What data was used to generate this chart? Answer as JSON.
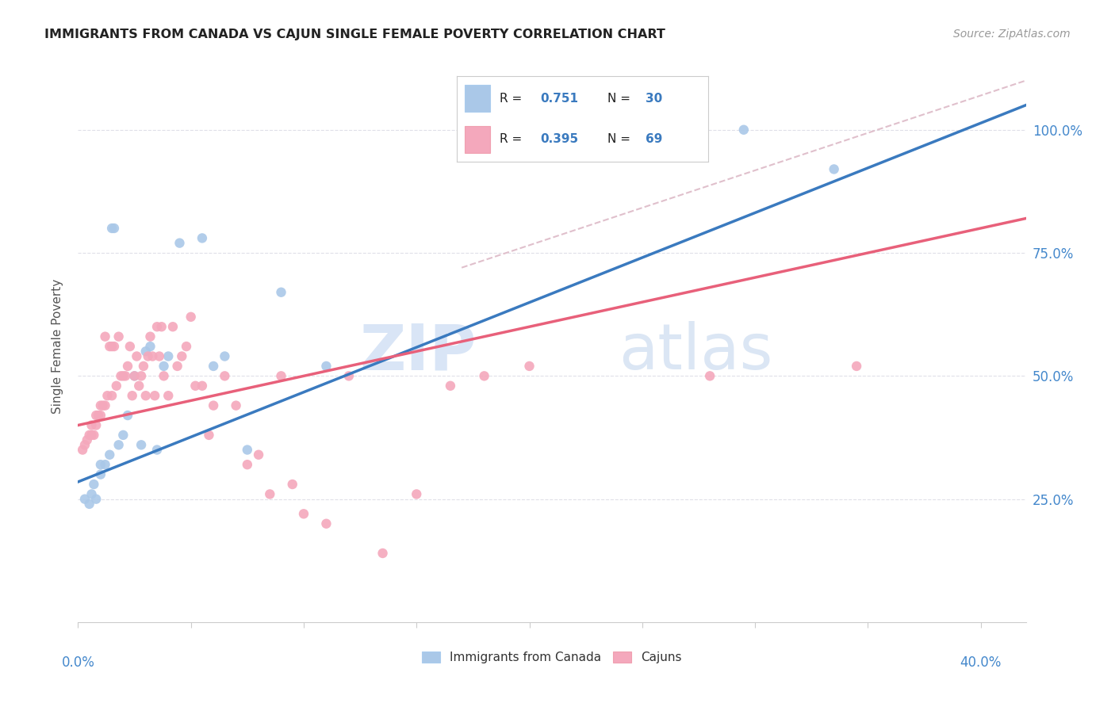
{
  "title": "IMMIGRANTS FROM CANADA VS CAJUN SINGLE FEMALE POVERTY CORRELATION CHART",
  "source": "Source: ZipAtlas.com",
  "ylabel": "Single Female Poverty",
  "r_canada": 0.751,
  "n_canada": 30,
  "r_cajun": 0.395,
  "n_cajun": 69,
  "xlim": [
    0.0,
    0.42
  ],
  "ylim": [
    0.0,
    1.12
  ],
  "canada_color": "#aac8e8",
  "cajun_color": "#f4a8bc",
  "canada_line_color": "#3a7abf",
  "cajun_line_color": "#e8607a",
  "diagonal_color": "#e0c0cc",
  "background_color": "#ffffff",
  "watermark_zip": "ZIP",
  "watermark_atlas": "atlas",
  "canada_line_x0": 0.0,
  "canada_line_y0": 0.285,
  "canada_line_x1": 0.42,
  "canada_line_y1": 1.05,
  "cajun_line_x0": 0.0,
  "cajun_line_y0": 0.4,
  "cajun_line_x1": 0.42,
  "cajun_line_y1": 0.82,
  "diag_line_x0": 0.17,
  "diag_line_y0": 0.72,
  "diag_line_x1": 0.42,
  "diag_line_y1": 1.1,
  "canada_x": [
    0.003,
    0.005,
    0.006,
    0.007,
    0.008,
    0.01,
    0.01,
    0.012,
    0.014,
    0.015,
    0.016,
    0.018,
    0.02,
    0.022,
    0.025,
    0.028,
    0.03,
    0.032,
    0.035,
    0.038,
    0.04,
    0.045,
    0.055,
    0.06,
    0.065,
    0.075,
    0.09,
    0.11,
    0.295,
    0.335
  ],
  "canada_y": [
    0.25,
    0.24,
    0.26,
    0.28,
    0.25,
    0.3,
    0.32,
    0.32,
    0.34,
    0.8,
    0.8,
    0.36,
    0.38,
    0.42,
    0.5,
    0.36,
    0.55,
    0.56,
    0.35,
    0.52,
    0.54,
    0.77,
    0.78,
    0.52,
    0.54,
    0.35,
    0.67,
    0.52,
    1.0,
    0.92
  ],
  "cajun_x": [
    0.002,
    0.003,
    0.004,
    0.005,
    0.006,
    0.006,
    0.007,
    0.008,
    0.008,
    0.009,
    0.01,
    0.01,
    0.011,
    0.012,
    0.012,
    0.013,
    0.014,
    0.015,
    0.015,
    0.016,
    0.017,
    0.018,
    0.019,
    0.02,
    0.021,
    0.022,
    0.023,
    0.024,
    0.025,
    0.026,
    0.027,
    0.028,
    0.029,
    0.03,
    0.031,
    0.032,
    0.033,
    0.034,
    0.035,
    0.036,
    0.037,
    0.038,
    0.04,
    0.042,
    0.044,
    0.046,
    0.048,
    0.05,
    0.052,
    0.055,
    0.058,
    0.06,
    0.065,
    0.07,
    0.075,
    0.08,
    0.085,
    0.09,
    0.095,
    0.1,
    0.11,
    0.12,
    0.135,
    0.15,
    0.165,
    0.18,
    0.2,
    0.28,
    0.345
  ],
  "cajun_y": [
    0.35,
    0.36,
    0.37,
    0.38,
    0.38,
    0.4,
    0.38,
    0.4,
    0.42,
    0.42,
    0.42,
    0.44,
    0.44,
    0.44,
    0.58,
    0.46,
    0.56,
    0.46,
    0.56,
    0.56,
    0.48,
    0.58,
    0.5,
    0.5,
    0.5,
    0.52,
    0.56,
    0.46,
    0.5,
    0.54,
    0.48,
    0.5,
    0.52,
    0.46,
    0.54,
    0.58,
    0.54,
    0.46,
    0.6,
    0.54,
    0.6,
    0.5,
    0.46,
    0.6,
    0.52,
    0.54,
    0.56,
    0.62,
    0.48,
    0.48,
    0.38,
    0.44,
    0.5,
    0.44,
    0.32,
    0.34,
    0.26,
    0.5,
    0.28,
    0.22,
    0.2,
    0.5,
    0.14,
    0.26,
    0.48,
    0.5,
    0.52,
    0.5,
    0.52
  ],
  "yticks": [
    0.0,
    0.25,
    0.5,
    0.75,
    1.0
  ],
  "ytick_labels": [
    "",
    "25.0%",
    "50.0%",
    "75.0%",
    "100.0%"
  ],
  "xtick_count": 9,
  "grid_color": "#e0e0e8",
  "spine_color": "#cccccc"
}
